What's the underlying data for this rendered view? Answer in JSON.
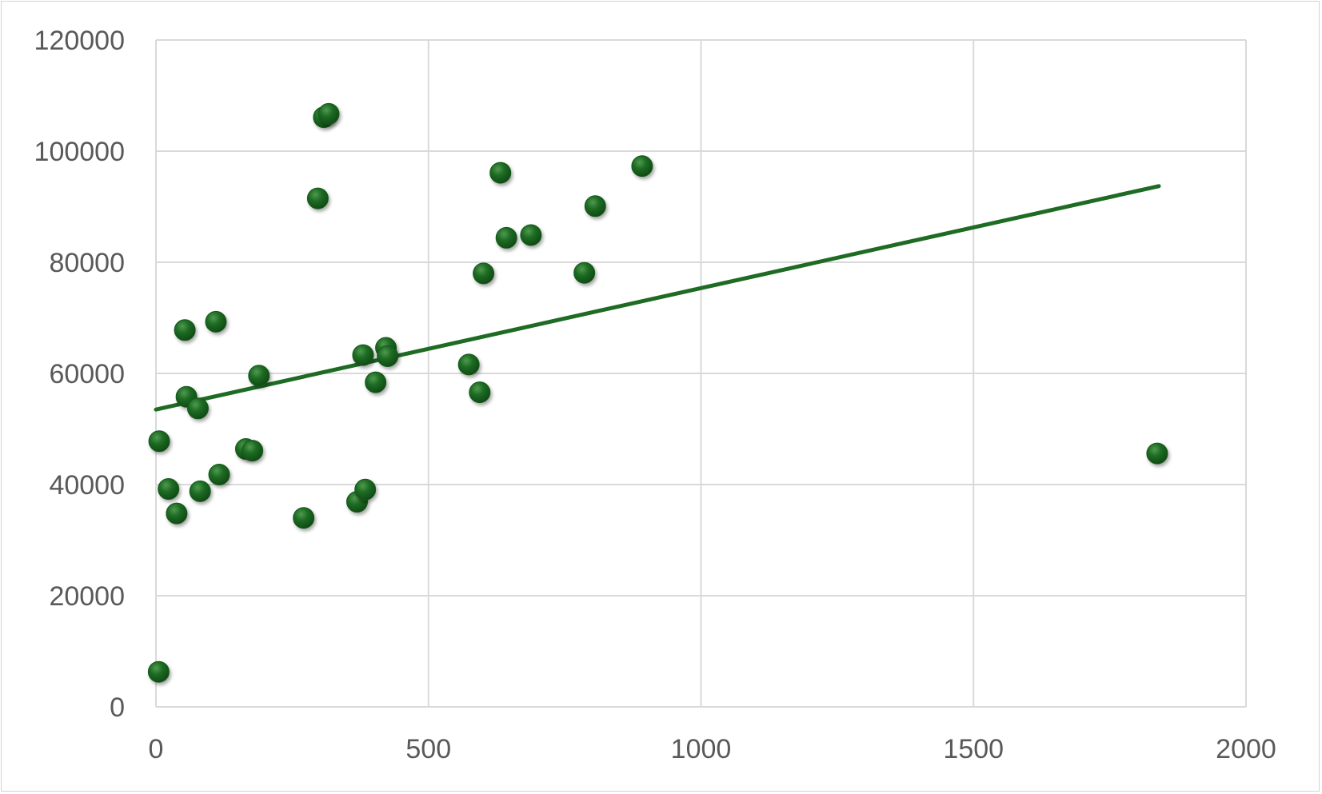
{
  "chart_data": {
    "type": "scatter",
    "title": "",
    "xlabel": "",
    "ylabel": "",
    "xlim": [
      0,
      2000
    ],
    "ylim": [
      0,
      120000
    ],
    "x_ticks": [
      0,
      500,
      1000,
      1500,
      2000
    ],
    "y_ticks": [
      0,
      20000,
      40000,
      60000,
      80000,
      100000,
      120000
    ],
    "x_tick_labels": [
      "0",
      "500",
      "1000",
      "1500",
      "2000"
    ],
    "y_tick_labels": [
      "0",
      "20000",
      "40000",
      "60000",
      "80000",
      "100000",
      "120000"
    ],
    "grid": true,
    "legend": "none",
    "colors": {
      "marker": "#1e6b24",
      "trendline": "#1e6b24",
      "grid": "#d9d9d9",
      "tick_text": "#595959"
    },
    "series": [
      {
        "points": [
          {
            "x": 5,
            "y": 6300
          },
          {
            "x": 6,
            "y": 47800
          },
          {
            "x": 23,
            "y": 39200
          },
          {
            "x": 38,
            "y": 34800
          },
          {
            "x": 53,
            "y": 67800
          },
          {
            "x": 56,
            "y": 55800
          },
          {
            "x": 77,
            "y": 53700
          },
          {
            "x": 81,
            "y": 38800
          },
          {
            "x": 110,
            "y": 69300
          },
          {
            "x": 116,
            "y": 41800
          },
          {
            "x": 165,
            "y": 46400
          },
          {
            "x": 177,
            "y": 46100
          },
          {
            "x": 189,
            "y": 59600
          },
          {
            "x": 271,
            "y": 34000
          },
          {
            "x": 297,
            "y": 91500
          },
          {
            "x": 308,
            "y": 106100
          },
          {
            "x": 317,
            "y": 106700
          },
          {
            "x": 369,
            "y": 36900
          },
          {
            "x": 380,
            "y": 63300
          },
          {
            "x": 384,
            "y": 39100
          },
          {
            "x": 403,
            "y": 58400
          },
          {
            "x": 422,
            "y": 64600
          },
          {
            "x": 425,
            "y": 63100
          },
          {
            "x": 574,
            "y": 61600
          },
          {
            "x": 594,
            "y": 56600
          },
          {
            "x": 601,
            "y": 78000
          },
          {
            "x": 632,
            "y": 96100
          },
          {
            "x": 643,
            "y": 84400
          },
          {
            "x": 688,
            "y": 84900
          },
          {
            "x": 786,
            "y": 78100
          },
          {
            "x": 806,
            "y": 90100
          },
          {
            "x": 892,
            "y": 97300
          },
          {
            "x": 1837,
            "y": 45600
          }
        ]
      }
    ],
    "trendline": {
      "type": "linear",
      "x": [
        0,
        1840
      ],
      "y": [
        53500,
        93700
      ]
    }
  }
}
